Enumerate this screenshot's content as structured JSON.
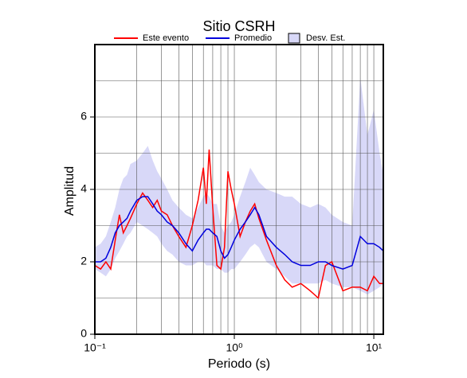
{
  "chart_data": {
    "type": "line",
    "title": "Sitio CSRH",
    "xlabel": "Periodo (s)",
    "ylabel": "Amplitud",
    "xscale": "log",
    "xlim": [
      0.1,
      11.7
    ],
    "ylim": [
      0,
      8
    ],
    "xticks": [
      {
        "value": 0.1,
        "label": "10⁻¹"
      },
      {
        "value": 1,
        "label": "10⁰"
      },
      {
        "value": 10,
        "label": "10¹"
      }
    ],
    "xminorticks": [
      0.2,
      0.3,
      0.4,
      0.5,
      0.6,
      0.7,
      0.8,
      0.9,
      2,
      3,
      4,
      5,
      6,
      7,
      8,
      9
    ],
    "yticks": [
      0,
      2,
      4,
      6
    ],
    "yminorticks": [
      1,
      3,
      5,
      7
    ],
    "grid": true,
    "x": [
      0.1,
      0.11,
      0.12,
      0.13,
      0.14,
      0.15,
      0.16,
      0.17,
      0.18,
      0.2,
      0.22,
      0.24,
      0.26,
      0.28,
      0.3,
      0.33,
      0.36,
      0.4,
      0.45,
      0.5,
      0.55,
      0.6,
      0.63,
      0.66,
      0.7,
      0.75,
      0.8,
      0.85,
      0.9,
      0.95,
      1.0,
      1.1,
      1.2,
      1.3,
      1.4,
      1.5,
      1.7,
      2.0,
      2.3,
      2.6,
      3.0,
      3.5,
      4.0,
      4.5,
      5.0,
      6.0,
      7.0,
      8.0,
      9.0,
      10.0,
      11.0,
      11.7
    ],
    "band": {
      "name": "Desv. Est.",
      "color": "#d8d8f8",
      "lower": [
        1.8,
        1.7,
        1.6,
        1.8,
        2.1,
        2.3,
        2.5,
        2.7,
        2.8,
        3.1,
        3.0,
        2.9,
        2.8,
        2.7,
        2.5,
        2.3,
        2.2,
        2.0,
        1.9,
        1.9,
        2.0,
        2.0,
        1.9,
        1.9,
        1.9,
        1.8,
        1.8,
        1.7,
        1.7,
        1.8,
        1.8,
        2.0,
        2.2,
        2.4,
        2.5,
        2.4,
        2.0,
        1.8,
        1.6,
        1.4,
        1.4,
        1.4,
        1.4,
        1.5,
        1.4,
        1.3,
        1.3,
        1.2,
        1.1,
        1.2,
        1.3,
        1.4
      ],
      "upper": [
        2.4,
        2.5,
        2.7,
        3.1,
        3.5,
        4.0,
        4.3,
        4.4,
        4.7,
        4.8,
        5.0,
        5.2,
        4.8,
        4.5,
        4.3,
        4.0,
        3.7,
        3.5,
        3.3,
        3.2,
        3.5,
        3.8,
        3.9,
        3.8,
        3.6,
        3.6,
        3.0,
        2.8,
        3.0,
        3.1,
        3.3,
        3.8,
        4.2,
        4.6,
        4.4,
        4.2,
        4.0,
        3.9,
        3.8,
        3.8,
        3.6,
        3.5,
        3.6,
        3.5,
        3.3,
        3.1,
        3.0,
        7.1,
        5.5,
        6.2,
        5.0,
        4.4
      ]
    },
    "series": [
      {
        "name": "Este evento",
        "color": "#ff0000",
        "values": [
          1.9,
          1.8,
          2.0,
          1.8,
          2.6,
          3.3,
          2.8,
          3.0,
          3.2,
          3.6,
          3.9,
          3.7,
          3.5,
          3.7,
          3.4,
          3.3,
          3.0,
          2.7,
          2.4,
          3.0,
          3.7,
          4.6,
          3.6,
          5.1,
          3.5,
          1.9,
          1.8,
          2.4,
          4.5,
          4.0,
          3.6,
          2.7,
          3.1,
          3.4,
          3.6,
          3.2,
          2.6,
          1.9,
          1.5,
          1.3,
          1.4,
          1.2,
          1.0,
          1.9,
          2.0,
          1.2,
          1.3,
          1.3,
          1.2,
          1.6,
          1.4,
          1.4
        ]
      },
      {
        "name": "Promedio",
        "color": "#0000dd",
        "values": [
          2.0,
          2.0,
          2.1,
          2.4,
          2.8,
          3.0,
          3.1,
          3.2,
          3.4,
          3.7,
          3.8,
          3.8,
          3.6,
          3.4,
          3.3,
          3.1,
          3.0,
          2.8,
          2.5,
          2.3,
          2.6,
          2.8,
          2.9,
          2.9,
          2.8,
          2.7,
          2.3,
          2.1,
          2.2,
          2.4,
          2.6,
          2.9,
          3.1,
          3.3,
          3.5,
          3.3,
          2.7,
          2.4,
          2.2,
          2.0,
          1.9,
          1.9,
          2.0,
          2.0,
          1.9,
          1.8,
          1.9,
          2.7,
          2.5,
          2.5,
          2.4,
          2.3
        ]
      }
    ]
  }
}
